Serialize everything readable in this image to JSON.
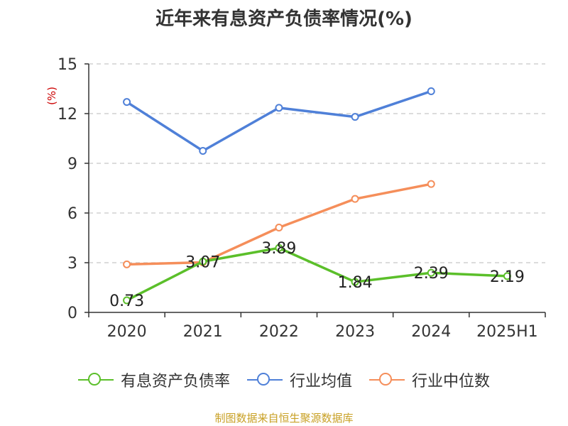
{
  "title": "近年来有息资产负债率情况(%)",
  "unit_label": "(%)",
  "source": "制图数据来自恒生聚源数据库",
  "chart_data": {
    "type": "line",
    "title": "近年来有息资产负债率情况(%)",
    "xlabel": "",
    "ylabel": "(%)",
    "categories": [
      "2020",
      "2021",
      "2022",
      "2023",
      "2024",
      "2025H1"
    ],
    "ylim": [
      0,
      15
    ],
    "yticks": [
      0,
      3,
      6,
      9,
      12,
      15
    ],
    "grid": true,
    "legend_position": "bottom",
    "series": [
      {
        "name": "有息资产负债率",
        "color": "#5bbf2a",
        "values": [
          0.73,
          3.07,
          3.89,
          1.84,
          2.39,
          2.19
        ],
        "labels": [
          "0.73",
          "3.07",
          "3.89",
          "1.84",
          "2.39",
          "2.19"
        ]
      },
      {
        "name": "行业均值",
        "color": "#4f80d8",
        "values": [
          12.7,
          9.75,
          12.35,
          11.8,
          13.35,
          null
        ]
      },
      {
        "name": "行业中位数",
        "color": "#f58e5a",
        "values": [
          2.9,
          3.02,
          5.12,
          6.85,
          7.75,
          null
        ]
      }
    ]
  }
}
